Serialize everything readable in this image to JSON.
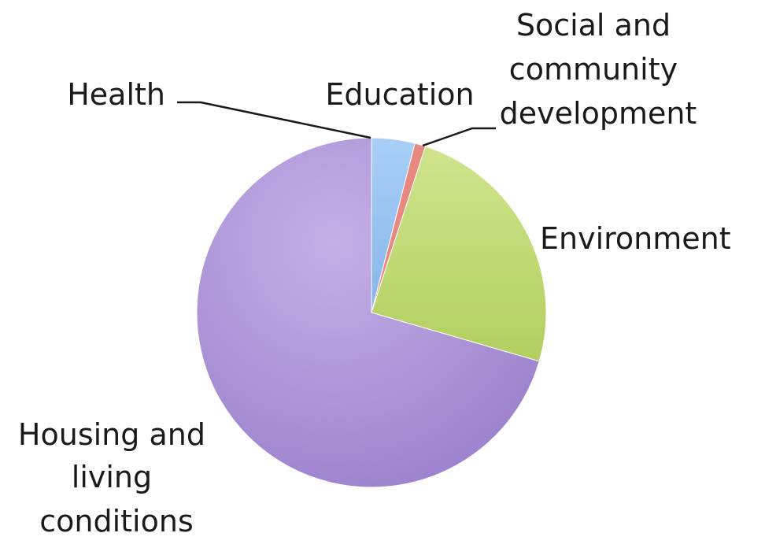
{
  "chart_data": {
    "type": "pie",
    "title": "",
    "legend": "none",
    "slices": [
      {
        "label": "Health",
        "label_lines": [
          "Health"
        ],
        "value": 0.0,
        "color": "#6f8fcf"
      },
      {
        "label": "Education",
        "label_lines": [
          "Education"
        ],
        "value": 4.0,
        "color": "#93c0f0"
      },
      {
        "label": "Social and community development",
        "label_lines": [
          "Social and",
          "community",
          "development"
        ],
        "value": 1.0,
        "color": "#e8897f"
      },
      {
        "label": "Environment",
        "label_lines": [
          "Environment"
        ],
        "value": 24.5,
        "color": "#bcd872"
      },
      {
        "label": "Housing and living conditions",
        "label_lines": [
          "Housing and",
          "living",
          "conditions"
        ],
        "value": 70.5,
        "color": "#a68bd3"
      }
    ]
  }
}
